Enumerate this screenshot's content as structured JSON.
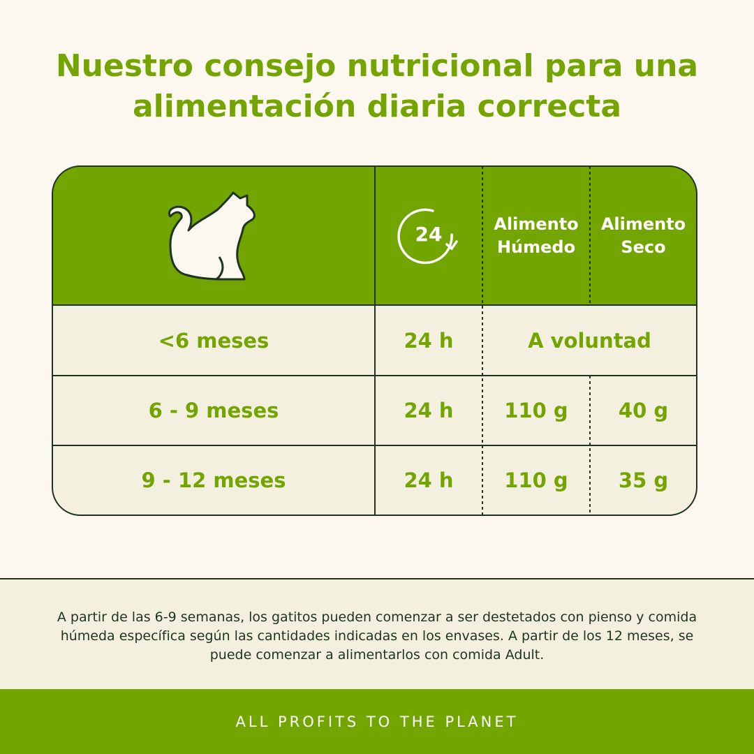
{
  "title": "Nuestro consejo nutricional para una alimentación diaria correcta",
  "table": {
    "header": [
      "24",
      "Alimento Húmedo",
      "Alimento Seco"
    ],
    "rows": [
      [
        "<6 meses",
        "24 h",
        "A voluntad"
      ],
      [
        "6 - 9 meses",
        "24 h",
        "110 g",
        "40 g"
      ],
      [
        "9 - 12 meses",
        "24 h",
        "110 g",
        "35 g"
      ]
    ]
  },
  "note": "A partir de las 6-9 semanas, los gatitos pueden comenzar a ser destetados con pienso y comida húmeda específica según las cantidades indicadas en los envases. A partir de los 12 meses, se puede comenzar a alimentarlos con comida Adult.",
  "footer": "ALL PROFITS TO THE PLANET"
}
